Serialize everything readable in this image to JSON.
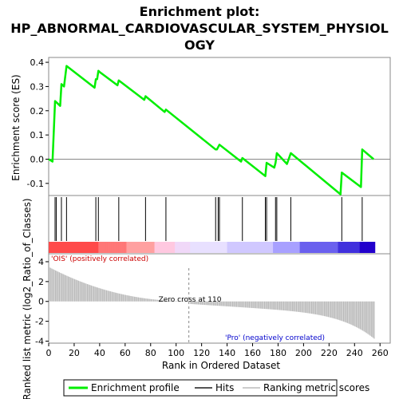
{
  "chart_data": {
    "type": "line",
    "title_line1": "Enrichment plot:",
    "title_line2": "HP_ABNORMAL_CARDIOVASCULAR_SYSTEM_PHYSIOL",
    "title_line3": "OGY",
    "es_panel": {
      "ylabel": "Enrichment score (ES)",
      "ylim": [
        -0.15,
        0.42
      ],
      "yticks": [
        "0.4",
        "0.3",
        "0.2",
        "0.1",
        "0.0",
        "-0.1"
      ],
      "ytick_values": [
        0.4,
        0.3,
        0.2,
        0.1,
        0.0,
        -0.1
      ],
      "series_name": "Enrichment profile",
      "x": [
        0,
        3,
        5,
        9,
        10,
        12,
        14,
        36,
        37,
        38,
        39,
        40,
        54,
        55,
        75,
        76,
        91,
        92,
        131,
        132,
        133,
        134,
        151,
        152,
        170,
        171,
        177,
        178,
        179,
        187,
        190,
        229,
        230,
        245,
        246,
        255
      ],
      "y": [
        0.0,
        -0.01,
        0.24,
        0.22,
        0.31,
        0.3,
        0.385,
        0.295,
        0.33,
        0.33,
        0.365,
        0.36,
        0.305,
        0.325,
        0.245,
        0.26,
        0.195,
        0.205,
        0.04,
        0.04,
        0.05,
        0.06,
        -0.01,
        0.005,
        -0.07,
        -0.015,
        -0.035,
        -0.015,
        0.025,
        -0.02,
        0.025,
        -0.145,
        -0.055,
        -0.115,
        0.04,
        0.0
      ]
    },
    "hits": [
      5,
      6,
      10,
      14,
      37,
      39,
      55,
      76,
      92,
      131,
      133,
      134,
      152,
      170,
      171,
      178,
      179,
      190,
      230,
      246
    ],
    "ranked_panel": {
      "ylabel": "Ranked list metric (log2_Ratio_of_Classes)",
      "ylim": [
        -4.2,
        4.8
      ],
      "yticks": [
        "4",
        "2",
        "0",
        "-2",
        "-4"
      ],
      "ytick_values": [
        4,
        2,
        0,
        -2,
        -4
      ],
      "xlabel": "Rank in Ordered Dataset",
      "xticks": [
        "0",
        "20",
        "40",
        "60",
        "80",
        "100",
        "120",
        "140",
        "160",
        "180",
        "200",
        "220",
        "240",
        "260"
      ],
      "xtick_values": [
        0,
        20,
        40,
        60,
        80,
        100,
        120,
        140,
        160,
        180,
        200,
        220,
        240,
        260
      ],
      "xlim": [
        0,
        268
      ],
      "zero_cross_label": "Zero cross at 110",
      "zero_cross": 110,
      "pos_label": "'OIS' (positively correlated)",
      "neg_label": "'Pro' (negatively correlated)",
      "n_genes": 256
    },
    "legend": {
      "entries": [
        "Enrichment profile",
        "Hits",
        "Ranking metric scores"
      ],
      "placement": "bottom"
    },
    "colors": {
      "profile": "#00ee00",
      "hits": "#000000",
      "bars": "#bbbbbb",
      "pos_label": "#cc0000",
      "neg_label": "#0000cc"
    }
  }
}
